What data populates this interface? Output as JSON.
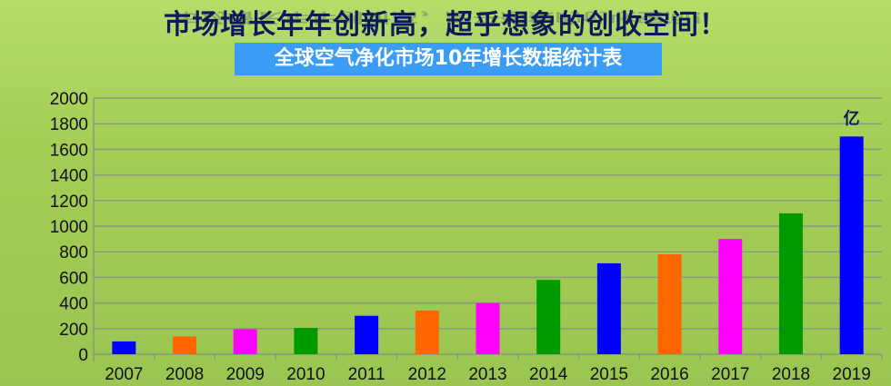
{
  "header": {
    "title": "市场增长年年创新高，超乎想象的创收空间！",
    "subtitle": "全球空气净化市场10年增长数据统计表"
  },
  "chart_data": {
    "type": "bar",
    "title": "全球空气净化市场10年增长数据统计表",
    "unit_label": "亿",
    "categories": [
      "2007",
      "2008",
      "2009",
      "2010",
      "2011",
      "2012",
      "2013",
      "2014",
      "2015",
      "2016",
      "2017",
      "2018",
      "2019"
    ],
    "values": [
      100,
      140,
      195,
      205,
      300,
      340,
      400,
      580,
      710,
      780,
      900,
      1100,
      1700
    ],
    "colors": [
      "#0000ff",
      "#ff6600",
      "#ff00ff",
      "#009900",
      "#0000ff",
      "#ff6600",
      "#ff00ff",
      "#009900",
      "#0000ff",
      "#ff6600",
      "#ff00ff",
      "#009900",
      "#0000ff"
    ],
    "ylim": [
      0,
      2000
    ],
    "yticks": [
      "0",
      "200",
      "400",
      "600",
      "800",
      "1000",
      "1200",
      "1400",
      "1600",
      "1800",
      "2000"
    ],
    "grid": true,
    "legend": "none"
  }
}
